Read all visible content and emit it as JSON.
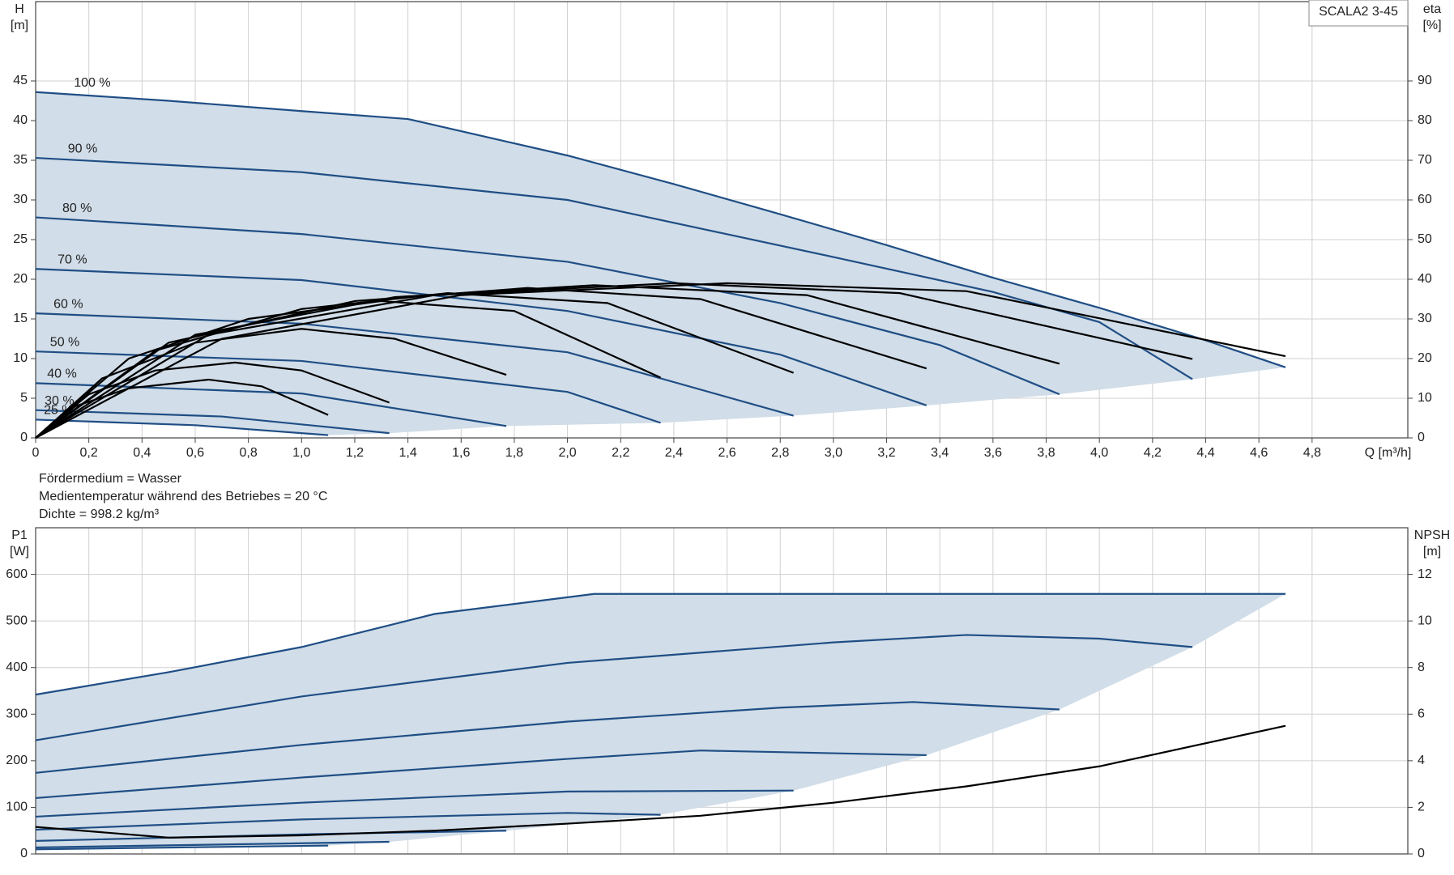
{
  "notes": [
    "Fördermedium = Wasser",
    "Medientemperatur während des Betriebes = 20 °C",
    "Dichte = 998.2 kg/m³"
  ],
  "chart_data": [
    {
      "type": "line",
      "annotation": "SCALA2 3-45",
      "xlabel": "Q [m³/h]",
      "ylabel": [
        "H",
        "[m]"
      ],
      "y2label": [
        "eta",
        "[%]"
      ],
      "grid": true,
      "fill": "#d1dde8",
      "xlim": [
        0,
        5.16
      ],
      "xticks": [
        0,
        {
          "value": 0.2,
          "label": "0,2"
        },
        {
          "value": 0.4,
          "label": "0,4"
        },
        {
          "value": 0.6,
          "label": "0,6"
        },
        {
          "value": 0.8,
          "label": "0,8"
        },
        {
          "value": 1.0,
          "label": "1,0"
        },
        {
          "value": 1.2,
          "label": "1,2"
        },
        {
          "value": 1.4,
          "label": "1,4"
        },
        {
          "value": 1.6,
          "label": "1,6"
        },
        {
          "value": 1.8,
          "label": "1,8"
        },
        {
          "value": 2.0,
          "label": "2,0"
        },
        {
          "value": 2.2,
          "label": "2,2"
        },
        {
          "value": 2.4,
          "label": "2,4"
        },
        {
          "value": 2.6,
          "label": "2,6"
        },
        {
          "value": 2.8,
          "label": "2,8"
        },
        {
          "value": 3.0,
          "label": "3,0"
        },
        {
          "value": 3.2,
          "label": "3,2"
        },
        {
          "value": 3.4,
          "label": "3,4"
        },
        {
          "value": 3.6,
          "label": "3,6"
        },
        {
          "value": 3.8,
          "label": "3,8"
        },
        {
          "value": 4.0,
          "label": "4,0"
        },
        {
          "value": 4.2,
          "label": "4,2"
        },
        {
          "value": 4.4,
          "label": "4,4"
        },
        {
          "value": 4.6,
          "label": "4,6"
        },
        {
          "value": 4.8,
          "label": "4,8"
        }
      ],
      "ylim": [
        0,
        55
      ],
      "yticks": [
        0,
        5,
        10,
        15,
        20,
        25,
        30,
        35,
        40,
        45
      ],
      "y2lim": [
        0,
        110
      ],
      "y2ticks": [
        0,
        10,
        20,
        30,
        40,
        50,
        60,
        70,
        80,
        90
      ],
      "series": [
        {
          "name": "100 %",
          "color": "#1f4e85",
          "x": [
            0,
            0.5,
            1.0,
            1.4,
            2.0,
            2.4,
            2.8,
            3.2,
            3.6,
            4.0,
            4.4,
            4.7
          ],
          "values": [
            43.6,
            42.5,
            41.2,
            40.2,
            35.6,
            32,
            28.2,
            24.3,
            20.2,
            16.4,
            12.3,
            8.9
          ]
        },
        {
          "name": "90 %",
          "color": "#1f4e85",
          "x": [
            0,
            1.0,
            2.0,
            3.0,
            3.6,
            4.0,
            4.35
          ],
          "values": [
            35.3,
            33.5,
            30,
            22.8,
            18.4,
            14.6,
            7.4
          ]
        },
        {
          "name": "80 %",
          "color": "#1f4e85",
          "x": [
            0,
            1.0,
            2.0,
            2.8,
            3.4,
            3.85
          ],
          "values": [
            27.8,
            25.7,
            22.2,
            17,
            11.7,
            5.5
          ]
        },
        {
          "name": "70 %",
          "color": "#1f4e85",
          "x": [
            0,
            1.0,
            2.0,
            2.8,
            3.35
          ],
          "values": [
            21.3,
            19.9,
            16,
            10.5,
            4.1
          ]
        },
        {
          "name": "60 %",
          "color": "#1f4e85",
          "x": [
            0,
            1.0,
            2.0,
            2.85
          ],
          "values": [
            15.7,
            14.4,
            10.8,
            2.8
          ]
        },
        {
          "name": "50 %",
          "color": "#1f4e85",
          "x": [
            0,
            1.0,
            2.0,
            2.35
          ],
          "values": [
            10.9,
            9.7,
            5.8,
            1.9
          ]
        },
        {
          "name": "40 %",
          "color": "#1f4e85",
          "x": [
            0,
            1.0,
            1.77
          ],
          "values": [
            6.9,
            5.6,
            1.5
          ]
        },
        {
          "name": "30 %",
          "color": "#1f4e85",
          "x": [
            0,
            0.7,
            1.33
          ],
          "values": [
            3.5,
            2.7,
            0.6
          ]
        },
        {
          "name": "25 %",
          "color": "#1f4e85",
          "x": [
            0,
            0.6,
            1.1
          ],
          "values": [
            2.3,
            1.6,
            0.35
          ]
        },
        {
          "color": "#000000",
          "axis": "y2",
          "x": [
            0,
            0.7,
            1.6,
            2.6,
            3.5,
            4.7
          ],
          "values": [
            0,
            25,
            36,
            39,
            37,
            20.6
          ]
        },
        {
          "color": "#000000",
          "axis": "y2",
          "x": [
            0,
            0.65,
            1.5,
            2.4,
            3.25,
            4.35
          ],
          "values": [
            0,
            26,
            36,
            39,
            36.5,
            19.9
          ]
        },
        {
          "color": "#000000",
          "axis": "y2",
          "x": [
            0,
            0.6,
            1.35,
            2.1,
            2.9,
            3.85
          ],
          "values": [
            0,
            26,
            35.5,
            38.5,
            36,
            18.7
          ]
        },
        {
          "color": "#000000",
          "axis": "y2",
          "x": [
            0,
            0.5,
            1.2,
            1.85,
            2.5,
            3.35
          ],
          "values": [
            0,
            24,
            34.5,
            37.8,
            35,
            17.5
          ]
        },
        {
          "color": "#000000",
          "axis": "y2",
          "x": [
            0,
            0.45,
            1.0,
            1.55,
            2.15,
            2.85
          ],
          "values": [
            0,
            22,
            32.5,
            36.5,
            34,
            16.4
          ]
        },
        {
          "color": "#000000",
          "axis": "y2",
          "x": [
            0,
            0.35,
            0.8,
            1.3,
            1.8,
            2.35
          ],
          "values": [
            0,
            20,
            30,
            34.5,
            32,
            15.2
          ]
        },
        {
          "color": "#000000",
          "axis": "y2",
          "x": [
            0,
            0.25,
            0.6,
            1.0,
            1.35,
            1.77
          ],
          "values": [
            0,
            15,
            24,
            27.5,
            25,
            15.9
          ]
        },
        {
          "color": "#000000",
          "axis": "y2",
          "x": [
            0,
            0.2,
            0.45,
            0.75,
            1.0,
            1.33
          ],
          "values": [
            0,
            11,
            17,
            19,
            17,
            8.9
          ]
        },
        {
          "color": "#000000",
          "axis": "y2",
          "x": [
            0,
            0.15,
            0.35,
            0.65,
            0.85,
            1.1
          ],
          "values": [
            0,
            8,
            12.5,
            14.7,
            13,
            5.8
          ]
        }
      ]
    },
    {
      "type": "line",
      "ylabel": [
        "P1",
        "[W]"
      ],
      "y2label": [
        "NPSH",
        "[m]"
      ],
      "grid": true,
      "fill": "#d1dde8",
      "xlim": [
        0,
        5.16
      ],
      "ylim": [
        0,
        700
      ],
      "yticks": [
        0,
        100,
        200,
        300,
        400,
        500,
        600
      ],
      "y2lim": [
        0,
        14
      ],
      "y2ticks": [
        0,
        2,
        4,
        6,
        8,
        10,
        12
      ],
      "series": [
        {
          "color": "#1f4e85",
          "x": [
            0,
            0.5,
            1.0,
            1.5,
            2.1,
            3.0,
            4.7
          ],
          "values": [
            342,
            390,
            444,
            515,
            558,
            558,
            558
          ]
        },
        {
          "color": "#1f4e85",
          "x": [
            0,
            1.0,
            2.0,
            3.0,
            3.5,
            4.0,
            4.35
          ],
          "values": [
            244,
            338,
            410,
            454,
            470,
            462,
            444
          ]
        },
        {
          "color": "#1f4e85",
          "x": [
            0,
            1.0,
            2.0,
            2.8,
            3.3,
            3.85
          ],
          "values": [
            174,
            234,
            284,
            314,
            326,
            310
          ]
        },
        {
          "color": "#1f4e85",
          "x": [
            0,
            1.0,
            2.0,
            2.5,
            3.35
          ],
          "values": [
            120,
            164,
            204,
            222,
            212
          ]
        },
        {
          "color": "#1f4e85",
          "x": [
            0,
            1.0,
            2.0,
            2.85
          ],
          "values": [
            80,
            110,
            134,
            136
          ]
        },
        {
          "color": "#1f4e85",
          "x": [
            0,
            1.0,
            2.0,
            2.35
          ],
          "values": [
            52,
            74,
            88,
            84
          ]
        },
        {
          "color": "#1f4e85",
          "x": [
            0,
            1.0,
            1.77
          ],
          "values": [
            28,
            42,
            50
          ]
        },
        {
          "color": "#1f4e85",
          "x": [
            0,
            1.33
          ],
          "values": [
            14,
            26
          ]
        },
        {
          "color": "#1f4e85",
          "x": [
            0,
            1.1
          ],
          "values": [
            10,
            18
          ]
        },
        {
          "color": "#000000",
          "axis": "y2",
          "x": [
            0,
            0.5,
            1.0,
            1.5,
            2.0,
            2.5,
            3.0,
            3.5,
            4.0,
            4.7
          ],
          "values": [
            1.16,
            0.7,
            0.8,
            1.0,
            1.3,
            1.64,
            2.2,
            2.9,
            3.76,
            5.5
          ]
        }
      ]
    }
  ]
}
